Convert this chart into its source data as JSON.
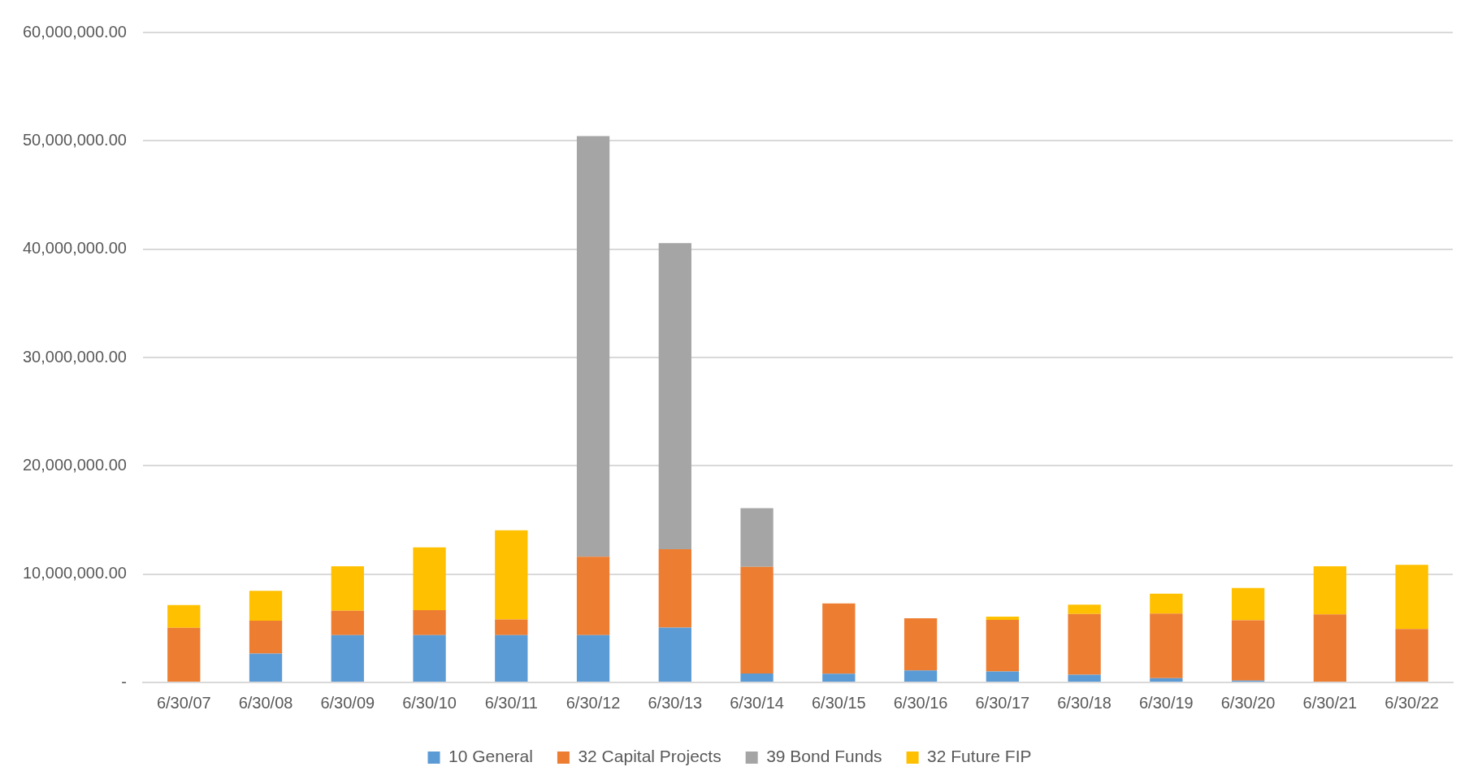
{
  "chart_data": {
    "type": "bar",
    "stacked": true,
    "categories": [
      "6/30/07",
      "6/30/08",
      "6/30/09",
      "6/30/10",
      "6/30/11",
      "6/30/12",
      "6/30/13",
      "6/30/14",
      "6/30/15",
      "6/30/16",
      "6/30/17",
      "6/30/18",
      "6/30/19",
      "6/30/20",
      "6/30/21",
      "6/30/22"
    ],
    "series": [
      {
        "name": "10 General",
        "color": "#5b9bd5",
        "values": [
          0,
          2670000,
          4360000,
          4360000,
          4360000,
          4360000,
          5060000,
          830000,
          800000,
          1110000,
          1010000,
          720000,
          390000,
          170000,
          0,
          0
        ]
      },
      {
        "name": "32 Capital Projects",
        "color": "#ed7d31",
        "values": [
          5050000,
          3030000,
          2250000,
          2310000,
          1450000,
          7240000,
          7240000,
          9840000,
          6500000,
          4810000,
          4770000,
          5600000,
          5960000,
          5570000,
          6280000,
          4940000
        ]
      },
      {
        "name": "39 Bond Funds",
        "color": "#a5a5a5",
        "values": [
          0,
          0,
          0,
          0,
          0,
          38840000,
          28260000,
          5420000,
          0,
          0,
          0,
          0,
          0,
          0,
          0,
          0
        ]
      },
      {
        "name": "32 Future FIP",
        "color": "#ffc000",
        "values": [
          2100000,
          2760000,
          4110000,
          5790000,
          8230000,
          0,
          0,
          0,
          0,
          0,
          290000,
          870000,
          1840000,
          2980000,
          4450000,
          5920000
        ]
      }
    ],
    "ylim": [
      0,
      60000000
    ],
    "yticks": [
      {
        "value": 0,
        "label": "-"
      },
      {
        "value": 10000000,
        "label": "10,000,000.00"
      },
      {
        "value": 20000000,
        "label": "20,000,000.00"
      },
      {
        "value": 30000000,
        "label": "30,000,000.00"
      },
      {
        "value": 40000000,
        "label": "40,000,000.00"
      },
      {
        "value": 50000000,
        "label": "50,000,000.00"
      },
      {
        "value": 60000000,
        "label": "60,000,000.00"
      }
    ],
    "grid": "y",
    "legend": "bottom"
  }
}
